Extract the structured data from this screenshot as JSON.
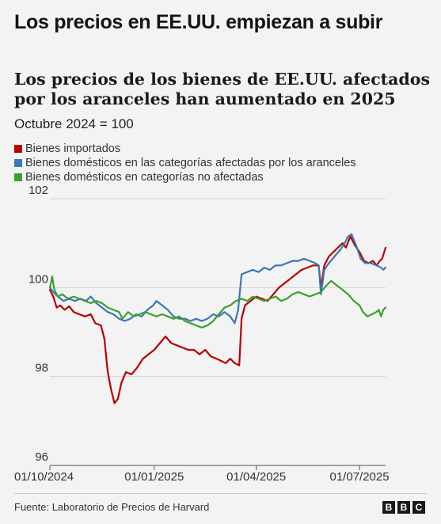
{
  "headline": "Los precios en EE.UU. empiezan a subir",
  "source": "Fuente: Laboratorio de Precios de Harvard",
  "logo": {
    "letters": [
      "B",
      "B",
      "C"
    ]
  },
  "chart_data": {
    "type": "line",
    "title": "Los precios de los bienes de EE.UU. afectados por los aranceles han aumentado en 2025",
    "subtitle": "Octubre 2024 = 100",
    "xlabel": "",
    "ylabel": "",
    "x_tick_labels": [
      "01/10/2024",
      "01/01/2025",
      "01/04/2025",
      "01/07/2025"
    ],
    "x_ticks": [
      "2024-10-01",
      "2025-01-01",
      "2025-04-01",
      "2025-07-01"
    ],
    "xlim": [
      "2024-10-01",
      "2025-07-24"
    ],
    "y_ticks": [
      96,
      98,
      100,
      102
    ],
    "ylim": [
      96,
      102
    ],
    "grid": true,
    "legend_position": "top-left",
    "series": [
      {
        "name": "Bienes importados",
        "color": "#b80000",
        "points": [
          [
            "2024-10-01",
            99.95
          ],
          [
            "2024-10-04",
            99.8
          ],
          [
            "2024-10-07",
            99.55
          ],
          [
            "2024-10-10",
            99.6
          ],
          [
            "2024-10-14",
            99.5
          ],
          [
            "2024-10-18",
            99.58
          ],
          [
            "2024-10-22",
            99.45
          ],
          [
            "2024-10-27",
            99.4
          ],
          [
            "2024-11-01",
            99.35
          ],
          [
            "2024-11-06",
            99.4
          ],
          [
            "2024-11-10",
            99.2
          ],
          [
            "2024-11-15",
            99.15
          ],
          [
            "2024-11-18",
            98.85
          ],
          [
            "2024-11-21",
            98.1
          ],
          [
            "2024-11-24",
            97.7
          ],
          [
            "2024-11-27",
            97.4
          ],
          [
            "2024-11-30",
            97.5
          ],
          [
            "2024-12-03",
            97.85
          ],
          [
            "2024-12-07",
            98.1
          ],
          [
            "2024-12-12",
            98.05
          ],
          [
            "2024-12-17",
            98.2
          ],
          [
            "2024-12-22",
            98.4
          ],
          [
            "2024-12-27",
            98.5
          ],
          [
            "2025-01-01",
            98.6
          ],
          [
            "2025-01-06",
            98.75
          ],
          [
            "2025-01-11",
            98.9
          ],
          [
            "2025-01-16",
            98.75
          ],
          [
            "2025-01-21",
            98.7
          ],
          [
            "2025-01-26",
            98.65
          ],
          [
            "2025-01-31",
            98.6
          ],
          [
            "2025-02-05",
            98.6
          ],
          [
            "2025-02-10",
            98.5
          ],
          [
            "2025-02-15",
            98.6
          ],
          [
            "2025-02-20",
            98.45
          ],
          [
            "2025-02-25",
            98.4
          ],
          [
            "2025-03-01",
            98.35
          ],
          [
            "2025-03-05",
            98.3
          ],
          [
            "2025-03-09",
            98.4
          ],
          [
            "2025-03-13",
            98.3
          ],
          [
            "2025-03-17",
            98.25
          ],
          [
            "2025-03-19",
            99.3
          ],
          [
            "2025-03-22",
            99.6
          ],
          [
            "2025-03-27",
            99.7
          ],
          [
            "2025-04-01",
            99.8
          ],
          [
            "2025-04-06",
            99.75
          ],
          [
            "2025-04-11",
            99.7
          ],
          [
            "2025-04-16",
            99.85
          ],
          [
            "2025-04-21",
            100.0
          ],
          [
            "2025-04-26",
            100.1
          ],
          [
            "2025-05-01",
            100.2
          ],
          [
            "2025-05-06",
            100.3
          ],
          [
            "2025-05-11",
            100.4
          ],
          [
            "2025-05-16",
            100.45
          ],
          [
            "2025-05-21",
            100.5
          ],
          [
            "2025-05-26",
            100.5
          ],
          [
            "2025-05-28",
            100.0
          ],
          [
            "2025-05-31",
            100.5
          ],
          [
            "2025-06-04",
            100.7
          ],
          [
            "2025-06-08",
            100.8
          ],
          [
            "2025-06-12",
            100.9
          ],
          [
            "2025-06-16",
            101.0
          ],
          [
            "2025-06-19",
            100.9
          ],
          [
            "2025-06-23",
            101.15
          ],
          [
            "2025-06-27",
            100.95
          ],
          [
            "2025-07-01",
            100.8
          ],
          [
            "2025-07-05",
            100.6
          ],
          [
            "2025-07-09",
            100.55
          ],
          [
            "2025-07-13",
            100.6
          ],
          [
            "2025-07-16",
            100.5
          ],
          [
            "2025-07-19",
            100.6
          ],
          [
            "2025-07-21",
            100.65
          ],
          [
            "2025-07-24",
            100.9
          ]
        ]
      },
      {
        "name": "Bienes domésticos en las categorías afectadas por los aranceles",
        "color": "#3a78b6",
        "points": [
          [
            "2024-10-01",
            100.0
          ],
          [
            "2024-10-04",
            99.9
          ],
          [
            "2024-10-08",
            99.8
          ],
          [
            "2024-10-13",
            99.7
          ],
          [
            "2024-10-18",
            99.75
          ],
          [
            "2024-10-23",
            99.7
          ],
          [
            "2024-10-28",
            99.75
          ],
          [
            "2024-11-02",
            99.7
          ],
          [
            "2024-11-06",
            99.8
          ],
          [
            "2024-11-11",
            99.65
          ],
          [
            "2024-11-16",
            99.55
          ],
          [
            "2024-11-21",
            99.45
          ],
          [
            "2024-11-26",
            99.4
          ],
          [
            "2024-12-01",
            99.3
          ],
          [
            "2024-12-06",
            99.25
          ],
          [
            "2024-12-11",
            99.3
          ],
          [
            "2024-12-16",
            99.4
          ],
          [
            "2024-12-21",
            99.35
          ],
          [
            "2024-12-26",
            99.5
          ],
          [
            "2024-12-31",
            99.6
          ],
          [
            "2025-01-03",
            99.7
          ],
          [
            "2025-01-08",
            99.6
          ],
          [
            "2025-01-13",
            99.5
          ],
          [
            "2025-01-18",
            99.35
          ],
          [
            "2025-01-23",
            99.3
          ],
          [
            "2025-01-28",
            99.3
          ],
          [
            "2025-02-02",
            99.25
          ],
          [
            "2025-02-07",
            99.3
          ],
          [
            "2025-02-12",
            99.25
          ],
          [
            "2025-02-17",
            99.3
          ],
          [
            "2025-02-22",
            99.4
          ],
          [
            "2025-02-27",
            99.35
          ],
          [
            "2025-03-04",
            99.45
          ],
          [
            "2025-03-09",
            99.35
          ],
          [
            "2025-03-13",
            99.2
          ],
          [
            "2025-03-16",
            99.5
          ],
          [
            "2025-03-19",
            100.3
          ],
          [
            "2025-03-24",
            100.35
          ],
          [
            "2025-03-29",
            100.4
          ],
          [
            "2025-04-03",
            100.35
          ],
          [
            "2025-04-08",
            100.45
          ],
          [
            "2025-04-13",
            100.4
          ],
          [
            "2025-04-18",
            100.5
          ],
          [
            "2025-04-23",
            100.5
          ],
          [
            "2025-04-28",
            100.55
          ],
          [
            "2025-05-03",
            100.6
          ],
          [
            "2025-05-08",
            100.6
          ],
          [
            "2025-05-13",
            100.65
          ],
          [
            "2025-05-18",
            100.6
          ],
          [
            "2025-05-23",
            100.55
          ],
          [
            "2025-05-26",
            100.5
          ],
          [
            "2025-05-28",
            99.85
          ],
          [
            "2025-05-31",
            100.4
          ],
          [
            "2025-06-04",
            100.55
          ],
          [
            "2025-06-09",
            100.7
          ],
          [
            "2025-06-14",
            100.85
          ],
          [
            "2025-06-18",
            101.0
          ],
          [
            "2025-06-21",
            101.15
          ],
          [
            "2025-06-24",
            101.2
          ],
          [
            "2025-06-28",
            100.95
          ],
          [
            "2025-07-02",
            100.65
          ],
          [
            "2025-07-06",
            100.55
          ],
          [
            "2025-07-11",
            100.55
          ],
          [
            "2025-07-16",
            100.5
          ],
          [
            "2025-07-20",
            100.45
          ],
          [
            "2025-07-22",
            100.4
          ],
          [
            "2025-07-24",
            100.45
          ]
        ]
      },
      {
        "name": "Bienes domésticos en categorías no afectadas",
        "color": "#3aa02e",
        "points": [
          [
            "2024-10-01",
            100.0
          ],
          [
            "2024-10-02",
            100.1
          ],
          [
            "2024-10-03",
            100.25
          ],
          [
            "2024-10-05",
            99.95
          ],
          [
            "2024-10-08",
            99.8
          ],
          [
            "2024-10-12",
            99.85
          ],
          [
            "2024-10-17",
            99.75
          ],
          [
            "2024-10-22",
            99.8
          ],
          [
            "2024-10-27",
            99.75
          ],
          [
            "2024-11-01",
            99.7
          ],
          [
            "2024-11-06",
            99.65
          ],
          [
            "2024-11-11",
            99.7
          ],
          [
            "2024-11-16",
            99.65
          ],
          [
            "2024-11-21",
            99.55
          ],
          [
            "2024-11-26",
            99.5
          ],
          [
            "2024-12-01",
            99.45
          ],
          [
            "2024-12-04",
            99.3
          ],
          [
            "2024-12-09",
            99.45
          ],
          [
            "2024-12-14",
            99.35
          ],
          [
            "2024-12-19",
            99.4
          ],
          [
            "2024-12-24",
            99.45
          ],
          [
            "2024-12-29",
            99.4
          ],
          [
            "2025-01-03",
            99.35
          ],
          [
            "2025-01-08",
            99.4
          ],
          [
            "2025-01-13",
            99.35
          ],
          [
            "2025-01-18",
            99.3
          ],
          [
            "2025-01-23",
            99.35
          ],
          [
            "2025-01-28",
            99.25
          ],
          [
            "2025-02-02",
            99.2
          ],
          [
            "2025-02-07",
            99.15
          ],
          [
            "2025-02-12",
            99.1
          ],
          [
            "2025-02-17",
            99.15
          ],
          [
            "2025-02-22",
            99.25
          ],
          [
            "2025-02-27",
            99.4
          ],
          [
            "2025-03-04",
            99.55
          ],
          [
            "2025-03-09",
            99.6
          ],
          [
            "2025-03-14",
            99.7
          ],
          [
            "2025-03-19",
            99.75
          ],
          [
            "2025-03-24",
            99.7
          ],
          [
            "2025-03-29",
            99.8
          ],
          [
            "2025-04-03",
            99.75
          ],
          [
            "2025-04-08",
            99.7
          ],
          [
            "2025-04-13",
            99.75
          ],
          [
            "2025-04-18",
            99.8
          ],
          [
            "2025-04-23",
            99.7
          ],
          [
            "2025-04-28",
            99.75
          ],
          [
            "2025-05-03",
            99.85
          ],
          [
            "2025-05-08",
            99.9
          ],
          [
            "2025-05-13",
            99.85
          ],
          [
            "2025-05-18",
            99.8
          ],
          [
            "2025-05-23",
            99.85
          ],
          [
            "2025-05-28",
            99.9
          ],
          [
            "2025-06-02",
            100.05
          ],
          [
            "2025-06-06",
            100.15
          ],
          [
            "2025-06-11",
            100.05
          ],
          [
            "2025-06-16",
            99.95
          ],
          [
            "2025-06-21",
            99.85
          ],
          [
            "2025-06-26",
            99.7
          ],
          [
            "2025-07-01",
            99.6
          ],
          [
            "2025-07-04",
            99.45
          ],
          [
            "2025-07-08",
            99.35
          ],
          [
            "2025-07-12",
            99.4
          ],
          [
            "2025-07-16",
            99.45
          ],
          [
            "2025-07-18",
            99.5
          ],
          [
            "2025-07-20",
            99.35
          ],
          [
            "2025-07-22",
            99.5
          ],
          [
            "2025-07-24",
            99.55
          ]
        ]
      }
    ]
  }
}
